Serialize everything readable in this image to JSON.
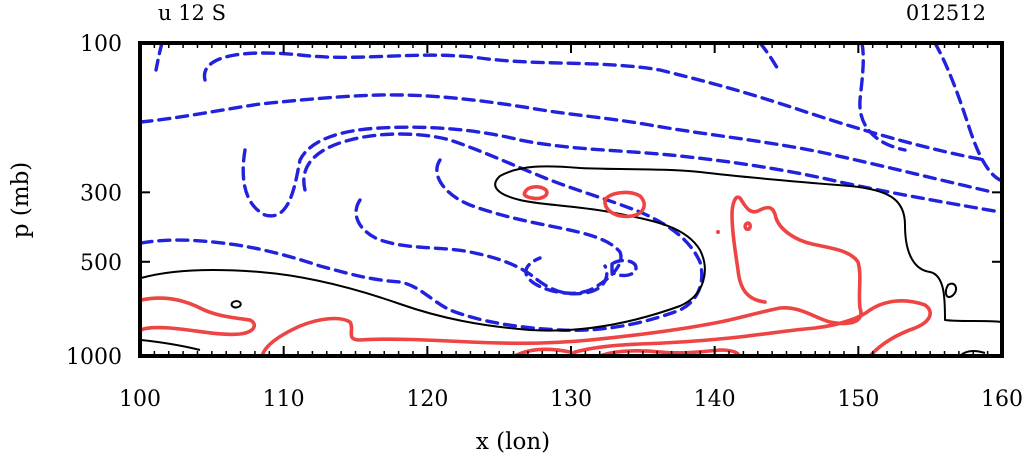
{
  "chart_data": {
    "type": "contour",
    "title_left": "u 12 S",
    "title_right": "012512",
    "xlabel": "x (lon)",
    "ylabel": "p (mb)",
    "xlim": [
      100,
      160
    ],
    "ylim": [
      1000,
      100
    ],
    "x_ticks": [
      "100",
      "110",
      "120",
      "130",
      "140",
      "150",
      "160"
    ],
    "y_ticks": [
      "100",
      "300",
      "500",
      "1000"
    ],
    "x_tick_values": [
      100,
      110,
      120,
      130,
      140,
      150,
      160
    ],
    "y_tick_values": [
      100,
      300,
      500,
      1000
    ],
    "contour_groups": [
      {
        "name": "negative (easterly) contours",
        "style": "dashed",
        "color": "#2222dd"
      },
      {
        "name": "zero contour",
        "style": "solid",
        "color": "#000000"
      },
      {
        "name": "positive (westerly) contours",
        "style": "solid",
        "color": "#ee4444"
      }
    ]
  }
}
